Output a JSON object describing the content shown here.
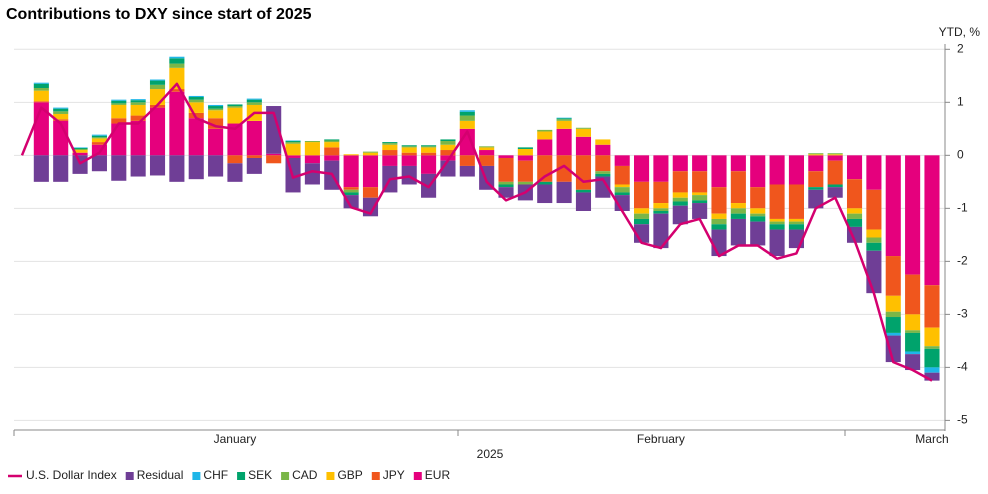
{
  "chart_data": {
    "type": "bar",
    "stacked": true,
    "title": "Contributions to DXY since start of 2025",
    "y_axis_label": "YTD, %",
    "x_axis_label": "2025",
    "categories": [
      null,
      null,
      null,
      null,
      null,
      null,
      null,
      null,
      null,
      null,
      null,
      "January",
      null,
      null,
      null,
      null,
      null,
      null,
      null,
      null,
      null,
      null,
      null,
      null,
      null,
      null,
      null,
      null,
      null,
      null,
      null,
      null,
      null,
      "February",
      null,
      null,
      null,
      null,
      null,
      null,
      null,
      null,
      null,
      null,
      null,
      null,
      null,
      "March"
    ],
    "ylim": [
      -5.2,
      2.1
    ],
    "yticks": [
      -5,
      -4,
      -3,
      -2,
      -1,
      0,
      1,
      2
    ],
    "grid": true,
    "legend": "bottom",
    "series": [
      {
        "name": "U.S. Dollar Index",
        "type": "line",
        "color": "#d4006f",
        "values": [
          0,
          0.9,
          0.6,
          -0.15,
          0.05,
          0.6,
          0.6,
          0.95,
          1.35,
          0.7,
          0.55,
          0.5,
          0.8,
          0.8,
          -0.42,
          -0.3,
          -0.35,
          -0.98,
          -1.1,
          -0.45,
          -0.4,
          -0.6,
          -0.1,
          0.45,
          -0.5,
          -0.85,
          -0.7,
          -0.4,
          -0.2,
          -0.5,
          -0.45,
          -1.05,
          -1.65,
          -1.75,
          -1.3,
          -1.2,
          -1.9,
          -1.7,
          -1.7,
          -1.95,
          -1.85,
          -1.0,
          -0.8,
          -1.6,
          -2.6,
          -3.9,
          -4.05,
          -4.25
        ]
      },
      {
        "name": "Residual",
        "type": "bar",
        "color": "#6f3e96",
        "values": [
          null,
          -0.5,
          -0.5,
          -0.35,
          -0.3,
          -0.48,
          -0.4,
          -0.38,
          -0.5,
          -0.45,
          -0.4,
          -0.35,
          -0.3,
          0.9,
          -0.65,
          -0.4,
          -0.55,
          -0.25,
          -0.35,
          -0.5,
          -0.35,
          -0.45,
          -0.3,
          -0.2,
          -0.45,
          -0.2,
          -0.3,
          -0.35,
          -0.4,
          -0.35,
          -0.4,
          -0.3,
          -0.35,
          -0.65,
          -0.35,
          -0.3,
          -0.5,
          -0.5,
          -0.45,
          -0.5,
          -0.35,
          -0.35,
          -0.2,
          -0.3,
          -0.8,
          -0.5,
          -0.3,
          -0.15
        ]
      },
      {
        "name": "CHF",
        "type": "bar",
        "color": "#1fb6e8",
        "values": [
          null,
          0.02,
          0.02,
          0.01,
          0.02,
          0.02,
          0.02,
          0.02,
          0.03,
          0.02,
          0.02,
          0,
          0.02,
          0,
          0.01,
          0,
          0,
          0,
          0,
          0,
          0,
          0,
          0,
          0.03,
          0,
          0,
          0,
          0,
          0.01,
          0,
          0,
          0,
          0,
          0,
          0,
          0,
          0,
          0,
          0,
          0,
          0,
          0,
          0,
          0,
          0,
          -0.05,
          -0.05,
          -0.1
        ]
      },
      {
        "name": "SEK",
        "type": "bar",
        "color": "#00a36c",
        "values": [
          null,
          0.08,
          0.05,
          0.02,
          0.03,
          0.05,
          0.04,
          0.08,
          0.1,
          0.05,
          0.05,
          0.03,
          0.05,
          0,
          0.02,
          0,
          0.02,
          -0.05,
          0,
          0.02,
          0.02,
          0.02,
          0.03,
          0.07,
          0,
          -0.05,
          0.03,
          -0.05,
          0.02,
          -0.05,
          -0.05,
          -0.05,
          -0.1,
          -0.05,
          -0.08,
          -0.05,
          -0.1,
          -0.1,
          -0.1,
          -0.1,
          -0.1,
          -0.05,
          -0.05,
          -0.15,
          -0.15,
          -0.3,
          -0.35,
          -0.35
        ]
      },
      {
        "name": "CAD",
        "type": "bar",
        "color": "#7ab648",
        "values": [
          null,
          0.05,
          0.05,
          0.02,
          0.02,
          0.03,
          0.05,
          0.08,
          0.08,
          0.05,
          0.03,
          0.03,
          0.05,
          0,
          0.03,
          0.02,
          0.03,
          -0.05,
          0.02,
          0.03,
          0.02,
          0.02,
          0.07,
          0.1,
          0.02,
          -0.05,
          -0.05,
          0.03,
          0.03,
          0.02,
          -0.05,
          -0.1,
          -0.1,
          -0.05,
          -0.07,
          -0.1,
          -0.1,
          -0.1,
          -0.05,
          -0.05,
          -0.05,
          0.02,
          0.02,
          -0.1,
          -0.1,
          -0.1,
          -0.05,
          -0.05
        ]
      },
      {
        "name": "GBP",
        "type": "bar",
        "color": "#ffc000",
        "values": [
          null,
          0.2,
          0.1,
          0.05,
          0.07,
          0.25,
          0.2,
          0.3,
          0.4,
          0.2,
          0.15,
          0.3,
          0.3,
          0,
          0.22,
          0.25,
          0.1,
          0.02,
          0.05,
          0.1,
          0.1,
          0.1,
          0.1,
          0.15,
          0.05,
          0,
          0.12,
          0.15,
          0.15,
          0.15,
          0.1,
          -0.05,
          -0.1,
          -0.1,
          -0.1,
          -0.05,
          -0.1,
          -0.1,
          -0.1,
          -0.05,
          -0.05,
          0.02,
          0.02,
          -0.1,
          -0.15,
          -0.3,
          -0.3,
          -0.35
        ]
      },
      {
        "name": "JPY",
        "type": "bar",
        "color": "#f0561d",
        "values": [
          null,
          0.02,
          0.03,
          0,
          0.05,
          0.1,
          0.1,
          0.05,
          0.05,
          0.1,
          0.2,
          -0.15,
          -0.05,
          -0.15,
          0,
          0,
          0.15,
          -0.05,
          -0.2,
          0.1,
          0.05,
          0.05,
          0.1,
          -0.2,
          -0.2,
          -0.45,
          -0.4,
          -0.5,
          -0.5,
          -0.65,
          -0.3,
          -0.35,
          -0.5,
          -0.4,
          -0.4,
          -0.4,
          -0.5,
          -0.6,
          -0.4,
          -0.65,
          -0.65,
          -0.3,
          -0.45,
          -0.55,
          -0.75,
          -0.75,
          -0.75,
          -0.8
        ]
      },
      {
        "name": "EUR",
        "type": "bar",
        "color": "#e5007d",
        "values": [
          null,
          1.0,
          0.65,
          0.05,
          0.2,
          0.6,
          0.65,
          0.9,
          1.2,
          0.7,
          0.5,
          0.6,
          0.65,
          0.03,
          -0.05,
          -0.15,
          -0.1,
          -0.6,
          -0.6,
          -0.2,
          -0.2,
          -0.35,
          -0.1,
          0.5,
          0.1,
          -0.05,
          -0.1,
          0.3,
          0.5,
          0.35,
          0.2,
          -0.2,
          -0.5,
          -0.5,
          -0.3,
          -0.3,
          -0.6,
          -0.3,
          -0.6,
          -0.55,
          -0.55,
          -0.3,
          -0.1,
          -0.45,
          -0.65,
          -1.9,
          -2.25,
          -2.45
        ]
      }
    ]
  }
}
